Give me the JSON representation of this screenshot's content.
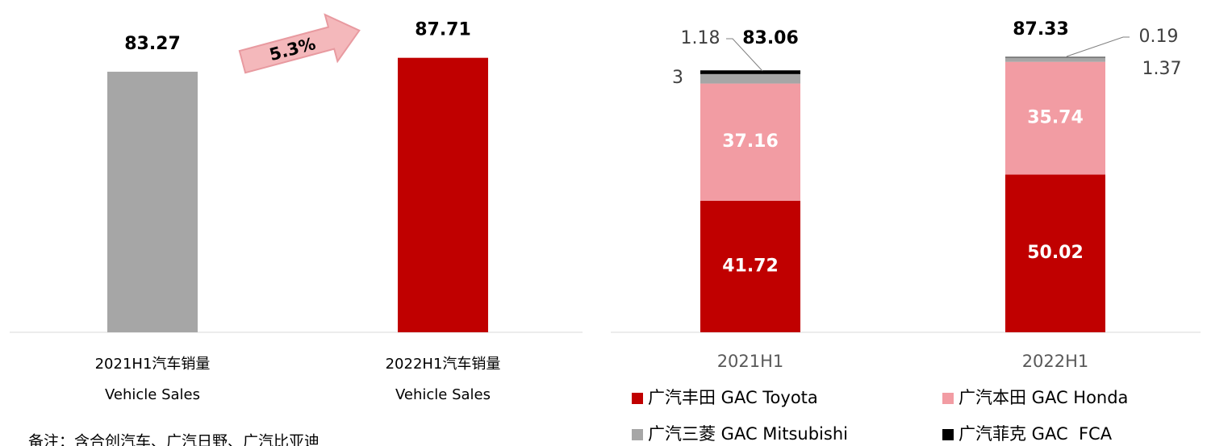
{
  "chart_data": [
    {
      "type": "bar",
      "categories": [
        "2021H1汽车销量\nVehicle Sales",
        "2022H1汽车销量\nVehicle Sales"
      ],
      "values": [
        83.27,
        87.71
      ],
      "colors": [
        "#a6a6a6",
        "#c00000"
      ],
      "ylim": [
        0,
        100
      ],
      "annotation": "5.3%",
      "note": "备注：含合创汽车、广汽日野、广汽比亚迪"
    },
    {
      "type": "stacked_bar",
      "categories": [
        "2021H1",
        "2022H1"
      ],
      "series": [
        {
          "name": "广汽丰田 GAC Toyota",
          "color": "#c00000",
          "values": [
            41.72,
            50.02
          ]
        },
        {
          "name": "广汽本田 GAC Honda",
          "color": "#f29ca3",
          "values": [
            37.16,
            35.74
          ]
        },
        {
          "name": "广汽三菱 GAC Mitsubishi",
          "color": "#a6a6a6",
          "values": [
            3,
            1.37
          ]
        },
        {
          "name": "广汽菲克 GAC  FCA",
          "color": "#000000",
          "values": [
            1.18,
            0.19
          ]
        }
      ],
      "totals": [
        83.06,
        87.33
      ],
      "ylim": [
        0,
        100
      ],
      "legend": "bottom"
    }
  ]
}
